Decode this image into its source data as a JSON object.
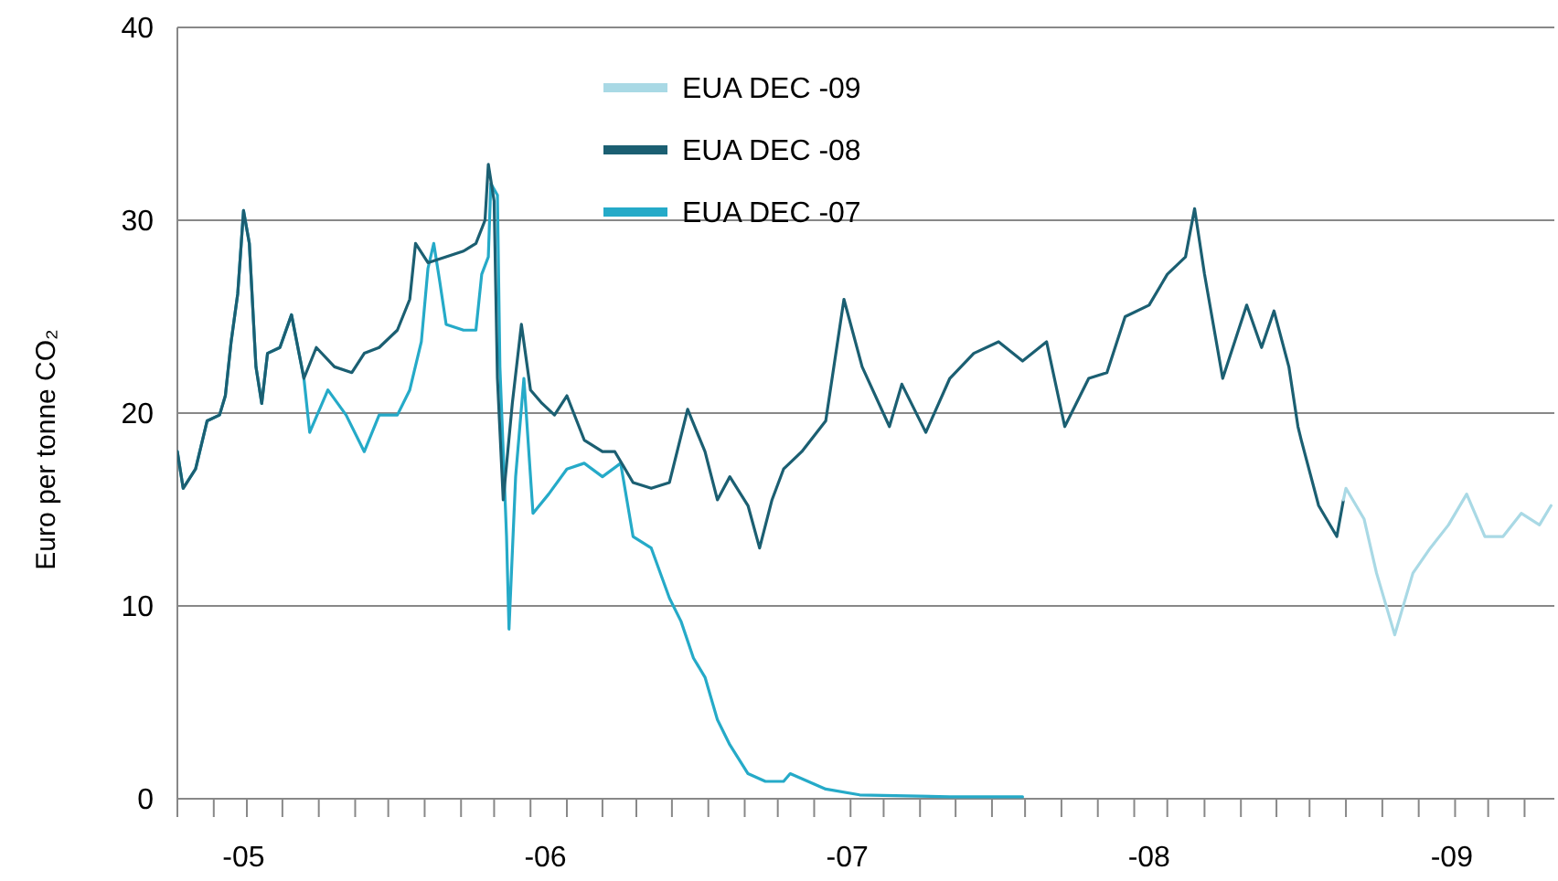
{
  "chart_data": {
    "type": "line",
    "ylabel": "Euro per tonne CO₂",
    "xlim": [
      "2004-10-13",
      "2009-05-05"
    ],
    "ylim": [
      0,
      40
    ],
    "yticks": [
      0,
      10,
      20,
      30,
      40
    ],
    "xticks": [
      {
        "value": "2005-01-01",
        "label": "-05"
      },
      {
        "value": "2006-01-01",
        "label": "-06"
      },
      {
        "value": "2007-01-01",
        "label": "-07"
      },
      {
        "value": "2008-01-01",
        "label": "-08"
      },
      {
        "value": "2009-01-01",
        "label": "-09"
      },
      {
        "value": "2004-10-13",
        "label": null
      },
      {
        "value": "2004-11-26",
        "label": null
      },
      {
        "value": "2005-01-05",
        "label": null
      },
      {
        "value": "2005-02-17",
        "label": null
      },
      {
        "value": "2005-04-02",
        "label": null
      },
      {
        "value": "2005-05-16",
        "label": null
      },
      {
        "value": "2005-06-25",
        "label": null
      },
      {
        "value": "2005-08-08",
        "label": null
      },
      {
        "value": "2005-09-21",
        "label": null
      },
      {
        "value": "2005-10-31",
        "label": null
      },
      {
        "value": "2005-12-14",
        "label": null
      },
      {
        "value": "2006-01-27",
        "label": null
      },
      {
        "value": "2006-03-11",
        "label": null
      },
      {
        "value": "2006-04-21",
        "label": null
      },
      {
        "value": "2006-06-03",
        "label": null
      },
      {
        "value": "2006-07-17",
        "label": null
      },
      {
        "value": "2006-08-30",
        "label": null
      },
      {
        "value": "2006-10-09",
        "label": null
      },
      {
        "value": "2006-11-22",
        "label": null
      },
      {
        "value": "2007-01-05",
        "label": null
      },
      {
        "value": "2007-02-14",
        "label": null
      },
      {
        "value": "2007-03-30",
        "label": null
      },
      {
        "value": "2007-05-12",
        "label": null
      },
      {
        "value": "2007-06-25",
        "label": null
      },
      {
        "value": "2007-08-04",
        "label": null
      },
      {
        "value": "2007-09-17",
        "label": null
      },
      {
        "value": "2007-10-31",
        "label": null
      },
      {
        "value": "2007-12-14",
        "label": null
      },
      {
        "value": "2008-01-23",
        "label": null
      },
      {
        "value": "2008-03-08",
        "label": null
      },
      {
        "value": "2008-04-21",
        "label": null
      },
      {
        "value": "2008-06-03",
        "label": null
      },
      {
        "value": "2008-07-13",
        "label": null
      },
      {
        "value": "2008-08-26",
        "label": null
      },
      {
        "value": "2008-10-09",
        "label": null
      },
      {
        "value": "2008-11-22",
        "label": null
      },
      {
        "value": "2009-01-05",
        "label": null
      },
      {
        "value": "2009-02-14",
        "label": null
      },
      {
        "value": "2009-03-30",
        "label": null
      }
    ],
    "grid": "y",
    "legend": "top",
    "marker": "none",
    "line_style": "solid",
    "series": [
      {
        "name": "EUA DEC -09",
        "color": "#a9d9e5",
        "x": [
          "2008-08-23",
          "2008-08-26",
          "2008-09-17",
          "2008-10-02",
          "2008-10-24",
          "2008-11-15",
          "2008-12-06",
          "2008-12-28",
          "2009-01-19",
          "2009-02-10",
          "2009-03-04",
          "2009-03-26",
          "2009-04-17",
          "2009-05-01"
        ],
        "values": [
          15.5,
          16.1,
          14.5,
          11.7,
          8.5,
          11.7,
          13.0,
          14.2,
          15.8,
          13.6,
          13.6,
          14.8,
          14.2,
          15.2
        ]
      },
      {
        "name": "EUA DEC -08",
        "color": "#1b5f72",
        "x": [
          "2004-10-13",
          "2004-10-20",
          "2004-11-04",
          "2004-11-18",
          "2004-12-03",
          "2004-12-10",
          "2004-12-17",
          "2004-12-25",
          "2005-01-01",
          "2005-01-08",
          "2005-01-16",
          "2005-01-23",
          "2005-01-30",
          "2005-02-14",
          "2005-02-28",
          "2005-03-15",
          "2005-03-30",
          "2005-04-21",
          "2005-05-12",
          "2005-05-27",
          "2005-06-14",
          "2005-07-06",
          "2005-07-21",
          "2005-07-28",
          "2005-08-12",
          "2005-09-03",
          "2005-09-24",
          "2005-10-09",
          "2005-10-20",
          "2005-10-24",
          "2005-10-31",
          "2005-11-04",
          "2005-11-11",
          "2005-11-22",
          "2005-12-03",
          "2005-12-14",
          "2005-12-28",
          "2006-01-12",
          "2006-01-27",
          "2006-02-17",
          "2006-03-11",
          "2006-03-26",
          "2006-04-17",
          "2006-05-09",
          "2006-05-31",
          "2006-06-22",
          "2006-07-13",
          "2006-07-28",
          "2006-08-12",
          "2006-09-03",
          "2006-09-17",
          "2006-10-02",
          "2006-10-16",
          "2006-11-07",
          "2006-12-06",
          "2006-12-28",
          "2007-01-19",
          "2007-02-21",
          "2007-03-08",
          "2007-04-06",
          "2007-05-05",
          "2007-06-03",
          "2007-07-03",
          "2007-08-01",
          "2007-08-30",
          "2007-09-21",
          "2007-10-20",
          "2007-11-11",
          "2007-12-03",
          "2008-01-01",
          "2008-01-23",
          "2008-02-14",
          "2008-02-25",
          "2008-03-08",
          "2008-03-30",
          "2008-04-28",
          "2008-05-16",
          "2008-05-31",
          "2008-06-18",
          "2008-06-29",
          "2008-07-03",
          "2008-07-24",
          "2008-08-15",
          "2008-08-23"
        ],
        "values": [
          18.0,
          16.1,
          17.1,
          19.6,
          19.9,
          20.9,
          23.7,
          26.2,
          30.5,
          28.8,
          22.4,
          20.5,
          23.1,
          23.4,
          25.1,
          21.8,
          23.4,
          22.4,
          22.1,
          23.1,
          23.4,
          24.3,
          25.9,
          28.8,
          27.8,
          28.1,
          28.4,
          28.8,
          30.0,
          32.9,
          31.0,
          21.8,
          15.5,
          20.5,
          24.6,
          21.2,
          20.5,
          19.9,
          20.9,
          18.6,
          18.0,
          18.0,
          16.4,
          16.1,
          16.4,
          20.2,
          18.0,
          15.5,
          16.7,
          15.2,
          13.0,
          15.5,
          17.1,
          18.0,
          19.6,
          25.9,
          22.4,
          19.3,
          21.5,
          19.0,
          21.8,
          23.1,
          23.7,
          22.7,
          23.7,
          19.3,
          21.8,
          22.1,
          25.0,
          25.6,
          27.2,
          28.1,
          30.6,
          27.2,
          21.8,
          25.6,
          23.4,
          25.3,
          22.4,
          19.3,
          18.6,
          15.2,
          13.6,
          15.5
        ]
      },
      {
        "name": "EUA DEC -07",
        "color": "#25aac8",
        "x": [
          "2004-10-13",
          "2004-10-20",
          "2004-11-04",
          "2004-11-18",
          "2004-12-03",
          "2004-12-10",
          "2004-12-17",
          "2004-12-25",
          "2005-01-01",
          "2005-01-08",
          "2005-01-16",
          "2005-01-23",
          "2005-01-30",
          "2005-02-14",
          "2005-02-28",
          "2005-03-15",
          "2005-03-22",
          "2005-04-13",
          "2005-05-05",
          "2005-05-27",
          "2005-06-14",
          "2005-07-06",
          "2005-07-21",
          "2005-08-04",
          "2005-08-12",
          "2005-08-19",
          "2005-08-26",
          "2005-09-03",
          "2005-09-24",
          "2005-10-09",
          "2005-10-16",
          "2005-10-24",
          "2005-10-27",
          "2005-11-04",
          "2005-11-07",
          "2005-11-15",
          "2005-11-18",
          "2005-11-26",
          "2005-12-06",
          "2005-12-17",
          "2006-01-05",
          "2006-01-27",
          "2006-02-17",
          "2006-03-11",
          "2006-04-02",
          "2006-04-17",
          "2006-05-09",
          "2006-05-31",
          "2006-06-14",
          "2006-06-29",
          "2006-07-13",
          "2006-07-28",
          "2006-08-12",
          "2006-09-03",
          "2006-09-24",
          "2006-10-16",
          "2006-10-24",
          "2006-12-06",
          "2007-01-16",
          "2007-05-05",
          "2007-08-01"
        ],
        "values": [
          18.0,
          16.1,
          17.1,
          19.6,
          19.9,
          20.9,
          23.7,
          26.2,
          30.5,
          28.8,
          22.4,
          20.5,
          23.1,
          23.4,
          25.1,
          21.8,
          19.0,
          21.2,
          19.9,
          18.0,
          19.9,
          19.9,
          21.2,
          23.7,
          27.5,
          28.8,
          26.9,
          24.6,
          24.3,
          24.3,
          27.2,
          28.1,
          31.9,
          31.3,
          22.4,
          13.6,
          8.8,
          16.7,
          21.8,
          14.8,
          15.8,
          17.1,
          17.4,
          16.7,
          17.4,
          13.6,
          13.0,
          10.4,
          9.2,
          7.3,
          6.3,
          4.1,
          2.8,
          1.3,
          0.9,
          0.9,
          1.3,
          0.5,
          0.2,
          0.1,
          0.1
        ]
      }
    ]
  }
}
